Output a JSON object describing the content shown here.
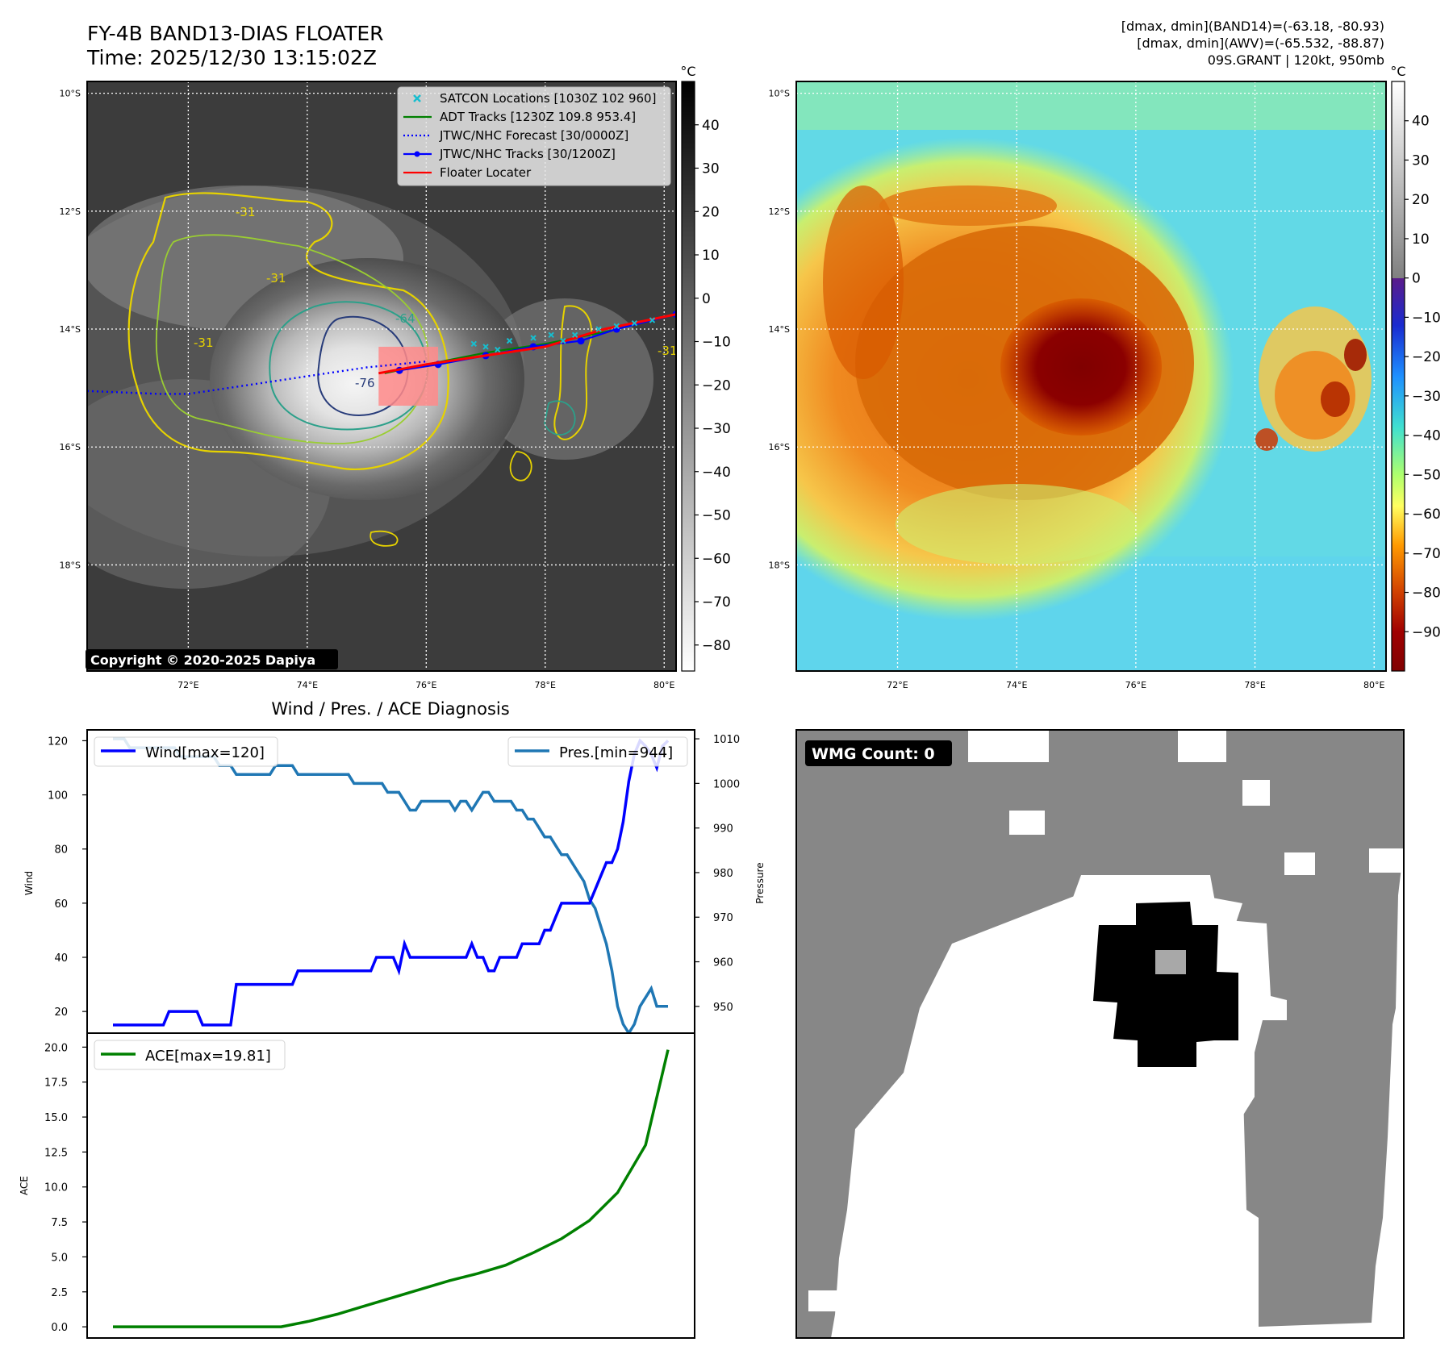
{
  "header": {
    "title_line1": "FY-4B BAND13-DIAS FLOATER",
    "title_line2": "Time: 2025/12/30 13:15:02Z",
    "info_line1": "[dmax, dmin](BAND14)=(-63.18, -80.93)",
    "info_line2": "[dmax, dmin](AWV)=(-65.532, -88.87)",
    "info_line3": "09S.GRANT | 120kt, 950mb"
  },
  "map_axes": {
    "lat_labels": [
      "10°S",
      "12°S",
      "14°S",
      "16°S",
      "18°S"
    ],
    "lon_labels": [
      "72°E",
      "74°E",
      "76°E",
      "78°E",
      "80°E"
    ],
    "lat_values": [
      -10,
      -12,
      -14,
      -16,
      -18
    ],
    "lon_values": [
      72,
      74,
      76,
      78,
      80
    ],
    "lon_range": [
      70.3,
      80.2
    ],
    "lat_range": [
      -9.8,
      -19.8
    ]
  },
  "ir_panel": {
    "copyright": "Copyright © 2020-2025 Dapiya",
    "contour_labels": [
      "-31",
      "-31",
      "-31",
      "-64",
      "-76",
      "-31"
    ],
    "legend": [
      {
        "label": "SATCON Locations [1030Z 102 960]",
        "color": "#17becf",
        "marker": "x"
      },
      {
        "label": "ADT Tracks [1230Z 109.8 953.4]",
        "color": "#008000",
        "marker": "line"
      },
      {
        "label": "JTWC/NHC Forecast [30/0000Z]",
        "color": "#0000ff",
        "marker": "dotted"
      },
      {
        "label": "JTWC/NHC Tracks [30/1200Z]",
        "color": "#0000ff",
        "marker": "dot-line"
      },
      {
        "label": "Floater Locater",
        "color": "#ff0000",
        "marker": "line"
      }
    ],
    "colorbar": {
      "unit": "°C",
      "ticks": [
        "40",
        "30",
        "20",
        "10",
        "0",
        "−10",
        "−20",
        "−30",
        "−40",
        "−50",
        "−60",
        "−70",
        "−80"
      ],
      "tick_values": [
        40,
        30,
        20,
        10,
        0,
        -10,
        -20,
        -30,
        -40,
        -50,
        -60,
        -70,
        -80
      ],
      "range": [
        -86,
        50
      ]
    },
    "tracks": {
      "jtwc_forecast": [
        [
          70.3,
          -15.05
        ],
        [
          71.5,
          -15.1
        ],
        [
          72.0,
          -15.1
        ],
        [
          73.0,
          -14.95
        ],
        [
          74.0,
          -14.8
        ],
        [
          75.0,
          -14.65
        ],
        [
          76.0,
          -14.55
        ]
      ],
      "jtwc_track": [
        [
          75.55,
          -14.7
        ],
        [
          76.2,
          -14.6
        ],
        [
          77.0,
          -14.45
        ],
        [
          77.8,
          -14.3
        ],
        [
          78.6,
          -14.2
        ],
        [
          79.2,
          -14.0
        ],
        [
          80.2,
          -13.75
        ]
      ],
      "adt_track": [
        [
          75.3,
          -14.75
        ],
        [
          76.0,
          -14.6
        ],
        [
          77.0,
          -14.4
        ],
        [
          78.0,
          -14.25
        ],
        [
          79.0,
          -14.05
        ],
        [
          80.2,
          -13.75
        ]
      ],
      "floater": [
        [
          75.2,
          -14.75
        ],
        [
          76.0,
          -14.6
        ],
        [
          77.0,
          -14.45
        ],
        [
          78.0,
          -14.3
        ],
        [
          79.0,
          -14.0
        ],
        [
          80.2,
          -13.75
        ]
      ],
      "floater_box": [
        [
          75.2,
          -14.3
        ],
        [
          76.2,
          -15.3
        ]
      ],
      "satcon_points": [
        [
          76.8,
          -14.25
        ],
        [
          77.0,
          -14.3
        ],
        [
          77.4,
          -14.2
        ],
        [
          77.8,
          -14.15
        ],
        [
          78.1,
          -14.1
        ],
        [
          78.5,
          -14.1
        ],
        [
          78.9,
          -14.0
        ],
        [
          79.2,
          -13.95
        ],
        [
          79.5,
          -13.9
        ],
        [
          79.8,
          -13.85
        ],
        [
          77.2,
          -14.35
        ],
        [
          78.3,
          -14.2
        ]
      ]
    }
  },
  "awv_panel": {
    "colorbar": {
      "unit": "°C",
      "ticks": [
        "40",
        "30",
        "20",
        "10",
        "0",
        "−10",
        "−20",
        "−30",
        "−40",
        "−50",
        "−60",
        "−70",
        "−80",
        "−90"
      ],
      "tick_values": [
        40,
        30,
        20,
        10,
        0,
        -10,
        -20,
        -30,
        -40,
        -50,
        -60,
        -70,
        -80,
        -90
      ],
      "range": [
        -100,
        50
      ]
    }
  },
  "diag_panel": {
    "title": "Wind / Pres. / ACE Diagnosis",
    "wind_ylabel": "Wind",
    "pres_ylabel": "Pressure",
    "ace_ylabel": "ACE",
    "wind_ticks": [
      "20",
      "40",
      "60",
      "80",
      "100",
      "120"
    ],
    "pres_ticks": [
      "950",
      "960",
      "970",
      "980",
      "990",
      "1000",
      "1010"
    ],
    "ace_ticks": [
      "0.0",
      "2.5",
      "5.0",
      "7.5",
      "10.0",
      "12.5",
      "15.0",
      "17.5",
      "20.0"
    ],
    "legend_wind": "Wind[max=120]",
    "legend_pres": "Pres.[min=944]",
    "legend_ace": "ACE[max=19.81]"
  },
  "chart_data": [
    {
      "type": "line",
      "name": "wind-pressure",
      "x": [
        0,
        1,
        2,
        3,
        4,
        5,
        6,
        7,
        8,
        9,
        10,
        11,
        12,
        13,
        14,
        15,
        16,
        17,
        18,
        19,
        20,
        21,
        22,
        23,
        24,
        25,
        26,
        27,
        28,
        29,
        30,
        31,
        32,
        33,
        34,
        35,
        36,
        37,
        38,
        39,
        40,
        41,
        42,
        43,
        44,
        45,
        46,
        47,
        48,
        49,
        50,
        51,
        52,
        53,
        54,
        55,
        56,
        57,
        58,
        59,
        60,
        61,
        62,
        63,
        64,
        65,
        66,
        67,
        68,
        69,
        70,
        71,
        72,
        73,
        74,
        75,
        76,
        77,
        78,
        79,
        80,
        81,
        82,
        83,
        84,
        85,
        86,
        87,
        88,
        89,
        90,
        91,
        92,
        93,
        94,
        95,
        96,
        97,
        98,
        99
      ],
      "series": [
        {
          "name": "Wind[max=120]",
          "axis": "left",
          "color": "#0000ff",
          "values": [
            15,
            15,
            15,
            15,
            15,
            15,
            15,
            15,
            15,
            15,
            20,
            20,
            20,
            20,
            20,
            20,
            15,
            15,
            15,
            15,
            15,
            15,
            30,
            30,
            30,
            30,
            30,
            30,
            30,
            30,
            30,
            30,
            30,
            35,
            35,
            35,
            35,
            35,
            35,
            35,
            35,
            35,
            35,
            35,
            35,
            35,
            35,
            40,
            40,
            40,
            40,
            35,
            45,
            40,
            40,
            40,
            40,
            40,
            40,
            40,
            40,
            40,
            40,
            40,
            45,
            40,
            40,
            35,
            35,
            40,
            40,
            40,
            40,
            45,
            45,
            45,
            45,
            50,
            50,
            55,
            60,
            60,
            60,
            60,
            60,
            60,
            65,
            70,
            75,
            75,
            80,
            90,
            105,
            115,
            120,
            118,
            115,
            110,
            118,
            120
          ]
        },
        {
          "name": "Pres.[min=944]",
          "axis": "right",
          "color": "#1f77b4",
          "values": [
            1010,
            1010,
            1010,
            1008,
            1008,
            1008,
            1008,
            1008,
            1008,
            1008,
            1008,
            1008,
            1006,
            1006,
            1006,
            1006,
            1006,
            1006,
            1006,
            1004,
            1004,
            1004,
            1002,
            1002,
            1002,
            1002,
            1002,
            1002,
            1002,
            1004,
            1004,
            1004,
            1004,
            1002,
            1002,
            1002,
            1002,
            1002,
            1002,
            1002,
            1002,
            1002,
            1002,
            1000,
            1000,
            1000,
            1000,
            1000,
            1000,
            998,
            998,
            998,
            996,
            994,
            994,
            996,
            996,
            996,
            996,
            996,
            996,
            994,
            996,
            996,
            994,
            996,
            998,
            998,
            996,
            996,
            996,
            996,
            994,
            994,
            992,
            992,
            990,
            988,
            988,
            986,
            984,
            984,
            982,
            980,
            978,
            974,
            972,
            968,
            964,
            958,
            950,
            946,
            944,
            946,
            950,
            952,
            954,
            950,
            950,
            950
          ]
        }
      ],
      "ylim_left": [
        12,
        124
      ],
      "ylim_right": [
        944,
        1012
      ]
    },
    {
      "type": "line",
      "name": "ace",
      "x": [
        0,
        5,
        10,
        15,
        20,
        25,
        30,
        35,
        40,
        45,
        50,
        55,
        60,
        65,
        70,
        75,
        80,
        85,
        90,
        95,
        99
      ],
      "series": [
        {
          "name": "ACE[max=19.81]",
          "color": "#008000",
          "values": [
            0,
            0,
            0,
            0,
            0,
            0,
            0,
            0.4,
            0.9,
            1.5,
            2.1,
            2.7,
            3.3,
            3.8,
            4.4,
            5.3,
            6.3,
            7.6,
            9.6,
            13.0,
            19.81
          ]
        }
      ],
      "ylim": [
        -0.8,
        21.0
      ]
    }
  ],
  "wmg_panel": {
    "badge": "WMG Count: 0",
    "colors": {
      "outer": "#878787",
      "inner": "#ffffff",
      "core": "#000000",
      "eye": "#a8a8a8"
    }
  }
}
